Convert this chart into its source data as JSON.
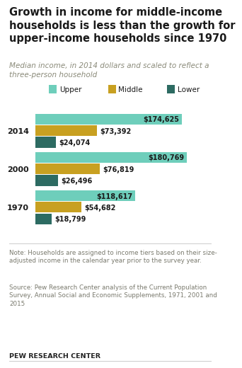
{
  "title": "Growth in income for middle-income\nhouseholds is less than the growth for\nupper-income households since 1970",
  "subtitle": "Median income, in 2014 dollars and scaled to reflect a\nthree-person household",
  "years": [
    "2014",
    "2000",
    "1970"
  ],
  "upper": [
    174625,
    180769,
    118617
  ],
  "middle": [
    73392,
    76819,
    54682
  ],
  "lower": [
    24074,
    26496,
    18799
  ],
  "upper_color": "#6ecebb",
  "middle_color": "#c8a021",
  "lower_color": "#2d6b62",
  "bg_color": "#ffffff",
  "title_color": "#1a1a1a",
  "subtitle_color": "#8b8b7a",
  "note_color": "#7a7a6e",
  "source_color": "#7a7a6e",
  "pew_color": "#222222",
  "note_text": "Note: Households are assigned to income tiers based on their size-\nadjusted income in the calendar year prior to the survey year.",
  "source_text": "Source: Pew Research Center analysis of the Current Population\nSurvey, Annual Social and Economic Supplements, 1971, 2001 and\n2015",
  "pew_text": "PEW RESEARCH CENTER",
  "max_value": 185000,
  "label_fontsize": 7.0,
  "year_fontsize": 8.0,
  "legend_fontsize": 7.5
}
